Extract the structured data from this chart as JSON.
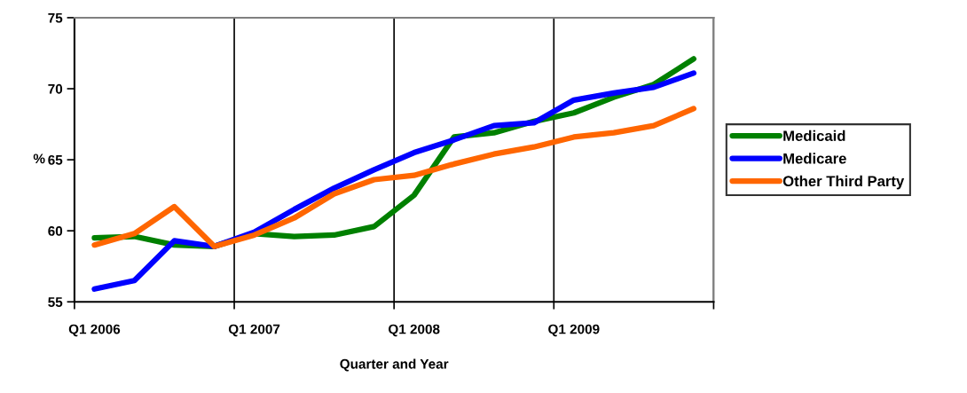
{
  "chart_data": {
    "type": "line",
    "xlabel": "Quarter and Year",
    "ylabel": "%",
    "categories": [
      "Q1 2006",
      null,
      null,
      null,
      "Q1 2007",
      null,
      null,
      null,
      "Q1 2008",
      null,
      null,
      null,
      "Q1 2009",
      null,
      null,
      null
    ],
    "series": [
      {
        "name": "Medicaid",
        "color": "#008000",
        "values": [
          59.5,
          59.6,
          59.0,
          58.9,
          59.8,
          59.6,
          59.7,
          60.3,
          62.5,
          66.6,
          66.9,
          67.7,
          68.3,
          69.4,
          70.3,
          72.1
        ]
      },
      {
        "name": "Medicare",
        "color": "#0000ff",
        "values": [
          55.9,
          56.5,
          59.3,
          58.9,
          59.9,
          61.5,
          63.0,
          64.3,
          65.5,
          66.4,
          67.4,
          67.6,
          69.2,
          69.7,
          70.1,
          71.1
        ]
      },
      {
        "name": "Other Third Party",
        "color": "#ff6600",
        "values": [
          59.0,
          59.8,
          61.7,
          58.9,
          59.7,
          60.9,
          62.6,
          63.6,
          63.9,
          64.7,
          65.4,
          65.9,
          66.6,
          66.9,
          67.4,
          68.6
        ]
      }
    ],
    "ylim": [
      55,
      75
    ],
    "yticks": [
      55,
      60,
      65,
      70,
      75
    ],
    "grid": "x",
    "legend": "right",
    "marker": "none",
    "line_style": "solid"
  }
}
